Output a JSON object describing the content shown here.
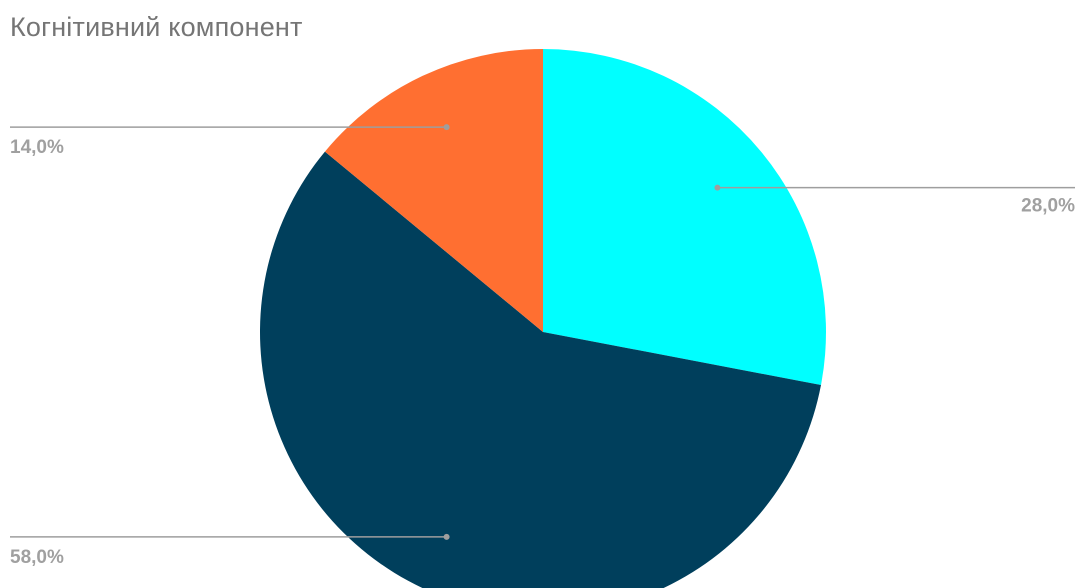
{
  "chart_data": {
    "type": "pie",
    "title": "Когнітивний компонент",
    "slices": [
      {
        "value": 28.0,
        "label": "28,0%",
        "color": "#00FFFF"
      },
      {
        "value": 58.0,
        "label": "58,0%",
        "color": "#003F5C"
      },
      {
        "value": 14.0,
        "label": "14,0%",
        "color": "#FF6F31"
      }
    ],
    "start_angle_deg": 0,
    "direction": "clockwise",
    "legend": "none"
  }
}
